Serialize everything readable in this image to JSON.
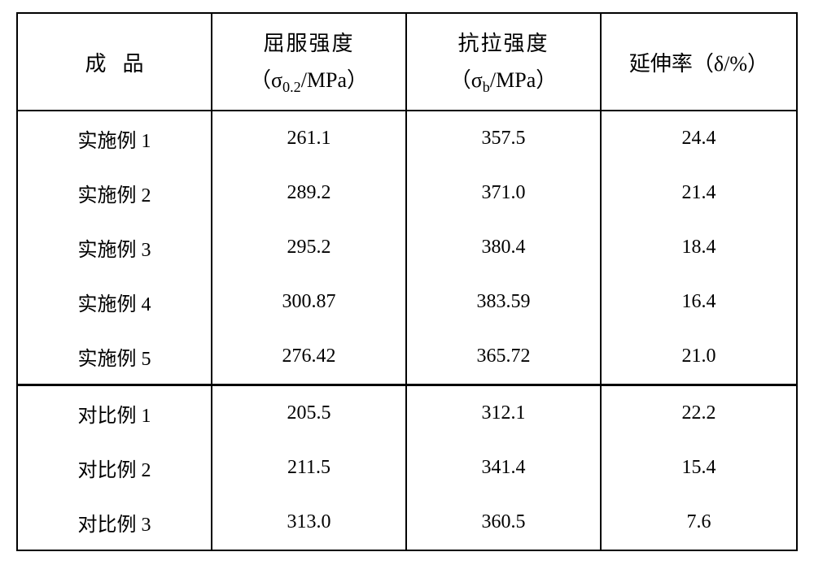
{
  "table": {
    "header": {
      "col1": "成品",
      "col2_line1": "屈服强度",
      "col2_line2": "（σ0.2/MPa）",
      "col3_line1": "抗拉强度",
      "col3_line2": "（σb/MPa）",
      "col4": "延伸率（δ/%）"
    },
    "section1_rows": [
      {
        "label": "实施例 1",
        "yield": "261.1",
        "tensile": "357.5",
        "elongation": "24.4"
      },
      {
        "label": "实施例 2",
        "yield": "289.2",
        "tensile": "371.0",
        "elongation": "21.4"
      },
      {
        "label": "实施例 3",
        "yield": "295.2",
        "tensile": "380.4",
        "elongation": "18.4"
      },
      {
        "label": "实施例 4",
        "yield": "300.87",
        "tensile": "383.59",
        "elongation": "16.4"
      },
      {
        "label": "实施例 5",
        "yield": "276.42",
        "tensile": "365.72",
        "elongation": "21.0"
      }
    ],
    "section2_rows": [
      {
        "label": "对比例 1",
        "yield": "205.5",
        "tensile": "312.1",
        "elongation": "22.2"
      },
      {
        "label": "对比例 2",
        "yield": "211.5",
        "tensile": "341.4",
        "elongation": "15.4"
      },
      {
        "label": "对比例 3",
        "yield": "313.0",
        "tensile": "360.5",
        "elongation": "7.6"
      }
    ]
  }
}
